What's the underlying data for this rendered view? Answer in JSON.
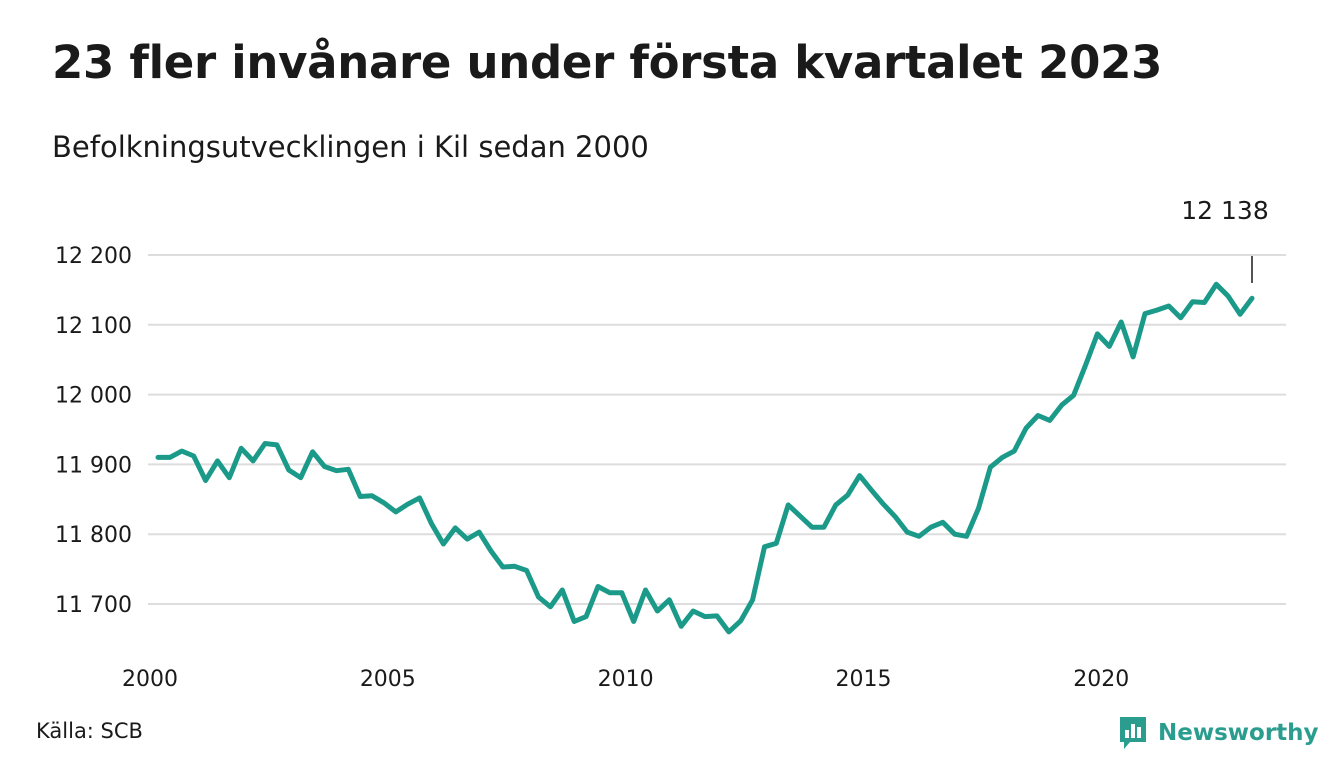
{
  "header": {
    "title": "23 fler invånare under första kvartalet 2023",
    "subtitle": "Befolkningsutvecklingen i Kil sedan 2000"
  },
  "footer": {
    "source": "Källa: SCB",
    "brand": "Newsworthy",
    "brand_icon": "newsworthy-logo-icon"
  },
  "colors": {
    "line": "#1b9a8a",
    "grid": "#dddddd",
    "text": "#1a1a1a",
    "brand": "#2a9d8f"
  },
  "chart_data": {
    "type": "line",
    "title": "23 fler invånare under första kvartalet 2023",
    "subtitle": "Befolkningsutvecklingen i Kil sedan 2000",
    "xlabel": "",
    "ylabel": "",
    "ylim": [
      11640,
      12220
    ],
    "xlim": [
      2000,
      2023.25
    ],
    "y_ticks": [
      11700,
      11800,
      11900,
      12000,
      12100,
      12200
    ],
    "y_tick_labels": [
      "11 700",
      "11 800",
      "11 900",
      "12 000",
      "12 100",
      "12 200"
    ],
    "x_ticks": [
      2000,
      2005,
      2010,
      2015,
      2020
    ],
    "x_tick_labels": [
      "2000",
      "2005",
      "2010",
      "2015",
      "2020"
    ],
    "grid": true,
    "annotation": {
      "label": "12 138",
      "x": 2023.0,
      "y": 12138
    },
    "series": [
      {
        "values_start": 2000,
        "values_step": 0.25,
        "values": [
          11910,
          11910,
          11919,
          11912,
          11877,
          11905,
          11881,
          11923,
          11905,
          11930,
          11928,
          11892,
          11881,
          11918,
          11897,
          11891,
          11893,
          11854,
          11855,
          11845,
          11832,
          11843,
          11852,
          11815,
          11786,
          11809,
          11793,
          11803,
          11776,
          11753,
          11754,
          11748,
          11710,
          11696,
          11720,
          11675,
          11682,
          11725,
          11716,
          11716,
          11675,
          11720,
          11690,
          11706,
          11668,
          11690,
          11682,
          11683,
          11660,
          11676,
          11706,
          11782,
          11787,
          11842,
          11826,
          11810,
          11810,
          11842,
          11856,
          11884,
          11863,
          11843,
          11825,
          11803,
          11797,
          11810,
          11817,
          11800,
          11797,
          11837,
          11896,
          11910,
          11919,
          11952,
          11970,
          11963,
          11985,
          11999,
          12042,
          12087,
          12069,
          12104,
          12054,
          12116,
          12121,
          12127,
          12110,
          12133,
          12132,
          12158,
          12141,
          12115,
          12138
        ]
      }
    ]
  }
}
